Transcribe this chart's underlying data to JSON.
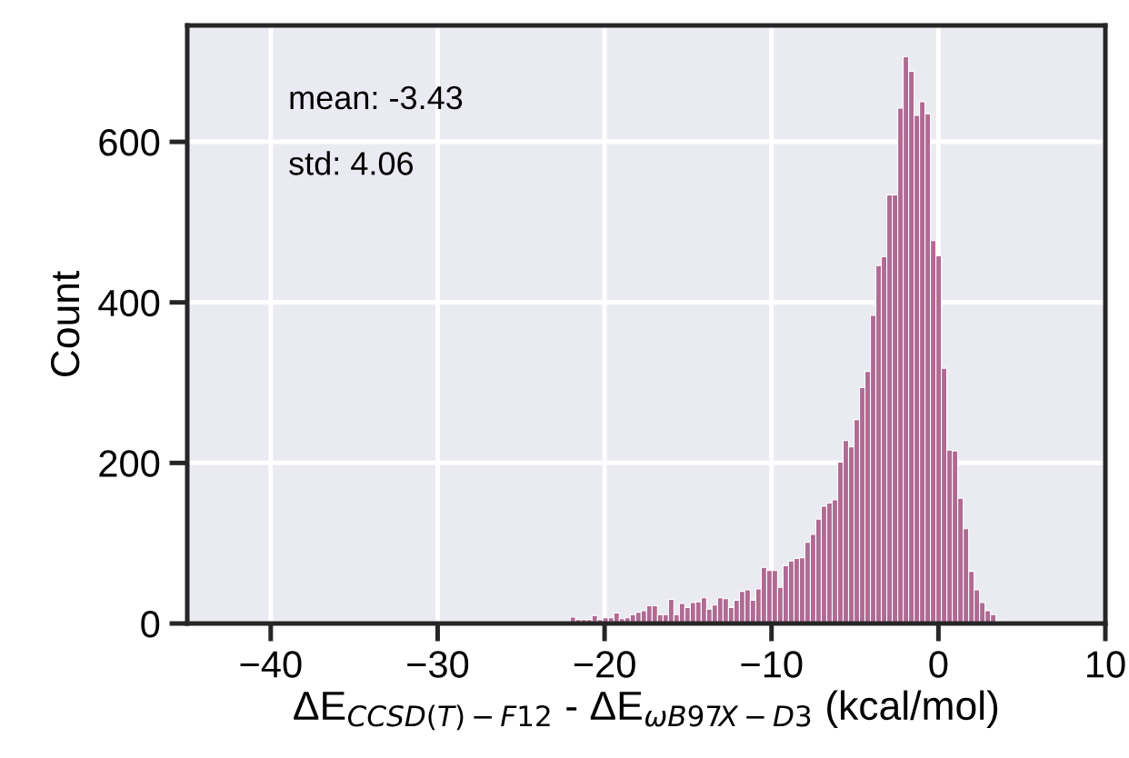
{
  "chart_data": {
    "type": "histogram",
    "xlabel": "ΔE$_{CCSD(T)−F12}$ - ΔE$_{ωB97X−D3}$ (kcal/mol)",
    "ylabel": "Count",
    "annotations": [
      "mean: -3.43",
      "std: 4.06"
    ],
    "color": "#b06a93",
    "bins": [
      -22.06,
      -21.733,
      -21.406,
      -21.079,
      -20.752,
      -20.425,
      -20.098,
      -19.771,
      -19.444,
      -19.117,
      -18.79,
      -18.463,
      -18.136,
      -17.809,
      -17.482,
      -17.155,
      -16.828,
      -16.501,
      -16.174,
      -15.847,
      -15.52,
      -15.193,
      -14.866,
      -14.539,
      -14.212,
      -13.885,
      -13.558,
      -13.231,
      -12.904,
      -12.577,
      -12.25,
      -11.923,
      -11.596,
      -11.269,
      -10.942,
      -10.615,
      -10.288,
      -9.961,
      -9.634,
      -9.307,
      -8.98,
      -8.653,
      -8.326,
      -7.999,
      -7.672,
      -7.345,
      -7.018,
      -6.691,
      -6.364,
      -6.037,
      -5.71,
      -5.383,
      -5.056,
      -4.729,
      -4.402,
      -4.075,
      -3.748,
      -3.421,
      -3.094,
      -2.767,
      -2.44,
      -2.113,
      -1.786,
      -1.459,
      -1.132,
      -0.805,
      -0.478,
      -0.151,
      0.176,
      0.503,
      0.83,
      1.157,
      1.484,
      1.811,
      2.138,
      2.465,
      2.792,
      3.119,
      3.446,
      3.773
    ],
    "values": [
      8,
      5,
      5,
      5,
      10,
      5,
      7,
      7,
      13,
      6,
      7,
      11,
      14,
      16,
      22,
      22,
      11,
      11,
      30,
      11,
      25,
      20,
      26,
      27,
      32,
      18,
      23,
      32,
      31,
      20,
      29,
      40,
      42,
      29,
      43,
      70,
      66,
      66,
      45,
      72,
      78,
      81,
      82,
      101,
      111,
      130,
      146,
      150,
      154,
      201,
      228,
      220,
      254,
      294,
      314,
      384,
      446,
      457,
      534,
      534,
      642,
      706,
      688,
      633,
      650,
      635,
      477,
      458,
      318,
      216,
      215,
      156,
      118,
      65,
      42,
      26,
      16,
      11,
      3
    ],
    "xlim": [
      -45,
      10
    ],
    "xticks": [
      -40,
      -30,
      -20,
      -10,
      0,
      10
    ],
    "ylim": [
      0,
      745
    ],
    "yticks": [
      0,
      200,
      400,
      600
    ],
    "grid": true
  }
}
